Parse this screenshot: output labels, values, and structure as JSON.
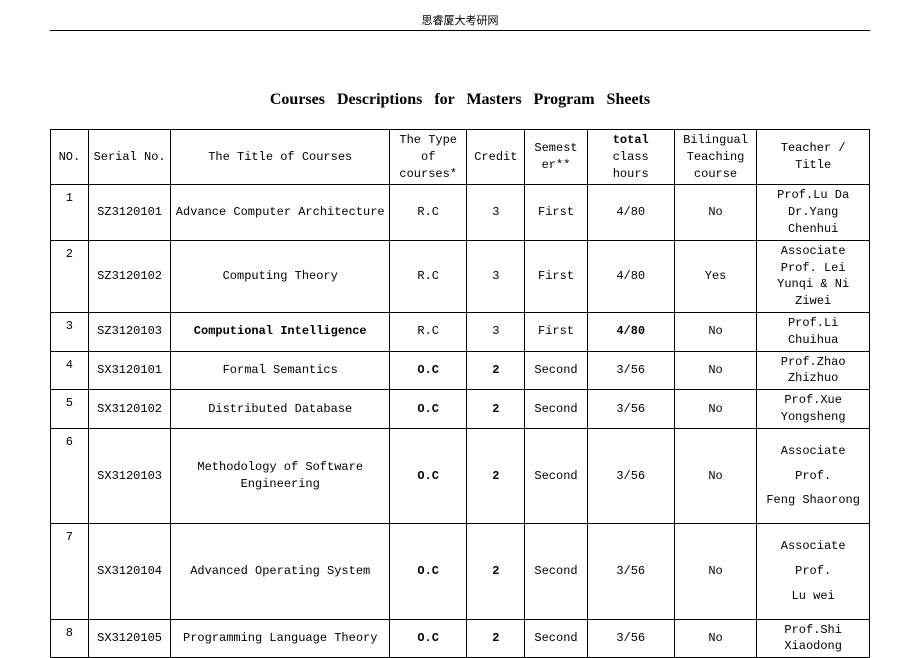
{
  "header": "思睿厦大考研网",
  "title": "Courses Descriptions for Masters Program Sheets",
  "columns": {
    "no": "NO.",
    "serial": "Serial No.",
    "title": "The Title of Courses",
    "type": "The Type of courses*",
    "credit": "Credit",
    "semester": "Semest er**",
    "hours": "total class hours",
    "bilingual": "Bilingual Teaching course",
    "teacher": "Teacher / Title"
  },
  "rows": [
    {
      "no": "1",
      "serial": "SZ3120101",
      "title": "Advance Computer Architecture",
      "type": "R.C",
      "credit": "3",
      "semester": "First",
      "hours": "4/80",
      "bilingual": "No",
      "teacher": "Prof.Lu Da Dr.Yang Chenhui"
    },
    {
      "no": "2",
      "serial": "SZ3120102",
      "title": "Computing Theory",
      "type": "R.C",
      "credit": "3",
      "semester": "First",
      "hours": "4/80",
      "bilingual": "Yes",
      "teacher": "Associate Prof. Lei Yunqi & Ni Ziwei"
    },
    {
      "no": "3",
      "serial": "SZ3120103",
      "title": "Computional Intelligence",
      "title_bold": true,
      "type": "R.C",
      "credit": "3",
      "semester": "First",
      "hours": "4/80",
      "hours_bold": true,
      "bilingual": "No",
      "teacher": "Prof.Li Chuihua"
    },
    {
      "no": "4",
      "serial": "SX3120101",
      "title": "Formal Semantics",
      "type": "O.C",
      "type_bold": true,
      "credit": "2",
      "credit_bold": true,
      "semester": "Second",
      "hours": "3/56",
      "bilingual": "No",
      "teacher": "Prof.Zhao Zhizhuo"
    },
    {
      "no": "5",
      "serial": "SX3120102",
      "title": "Distributed Database",
      "type": "O.C",
      "type_bold": true,
      "credit": "2",
      "credit_bold": true,
      "semester": "Second",
      "hours": "3/56",
      "bilingual": "No",
      "teacher": "Prof.Xue Yongsheng"
    },
    {
      "no": "6",
      "serial": "SX3120103",
      "title": "Methodology of Software Engineering",
      "type": "O.C",
      "type_bold": true,
      "credit": "2",
      "credit_bold": true,
      "semester": "Second",
      "hours": "3/56",
      "bilingual": "No",
      "teacher_lines": [
        "Associate",
        "Prof.",
        "Feng Shaorong"
      ]
    },
    {
      "no": "7",
      "serial": "SX3120104",
      "title": "Advanced Operating System",
      "type": "O.C",
      "type_bold": true,
      "credit": "2",
      "credit_bold": true,
      "semester": "Second",
      "hours": "3/56",
      "bilingual": "No",
      "teacher_lines": [
        "Associate",
        "Prof.",
        "Lu wei"
      ]
    },
    {
      "no": "8",
      "serial": "SX3120105",
      "title": "Programming Language Theory",
      "type": "O.C",
      "type_bold": true,
      "credit": "2",
      "credit_bold": true,
      "semester": "Second",
      "hours": "3/56",
      "bilingual": "No",
      "teacher": "Prof.Shi Xiaodong"
    }
  ]
}
